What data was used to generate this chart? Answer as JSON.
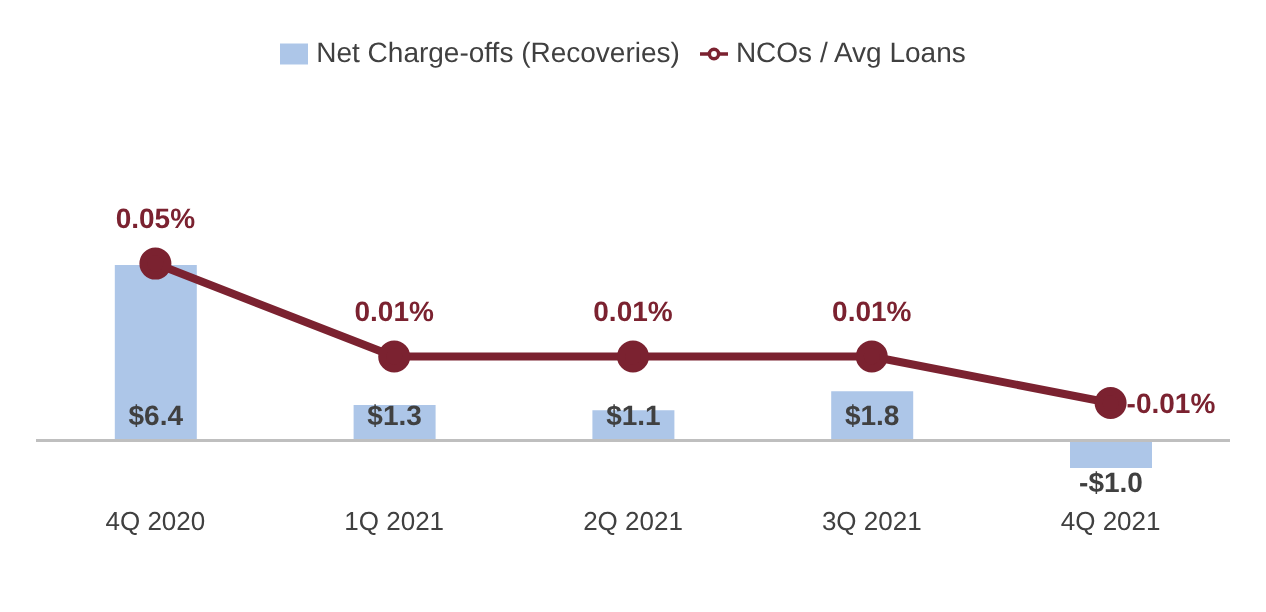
{
  "chart_data": {
    "type": "bar",
    "categories": [
      "4Q 2020",
      "1Q 2021",
      "2Q 2021",
      "3Q 2021",
      "4Q 2021"
    ],
    "series": [
      {
        "name": "Net Charge-offs (Recoveries)",
        "color": "#adc6e8",
        "values": [
          6.4,
          1.3,
          1.1,
          1.8,
          -1.0
        ],
        "value_labels": [
          "$6.4",
          "$1.3",
          "$1.1",
          "$1.8",
          "-$1.0"
        ]
      },
      {
        "name": "NCOs / Avg Loans",
        "type": "line",
        "axis": "y2",
        "color": "#7b2230",
        "values": [
          0.05,
          0.01,
          0.01,
          0.01,
          -0.01
        ],
        "value_labels": [
          "0.05%",
          "0.01%",
          "0.01%",
          "0.01%",
          "-0.01%"
        ]
      }
    ],
    "legend": "top",
    "marker": "circle",
    "line_style": "solid",
    "tick_labels": "x"
  }
}
